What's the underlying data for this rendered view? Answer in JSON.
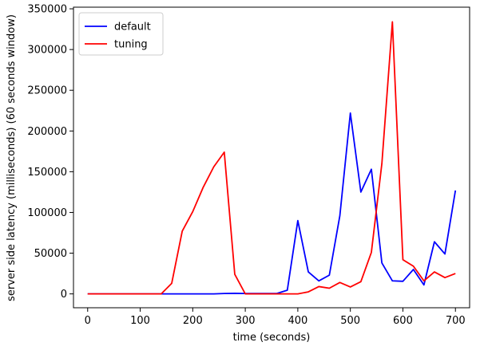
{
  "chart_data": {
    "type": "line",
    "title": "",
    "xlabel": "time (seconds)",
    "ylabel": "server side latency (milliseconds) (60 seconds window)",
    "xlim": [
      -27,
      727
    ],
    "ylim": [
      -17000,
      352000
    ],
    "xticks": [
      0,
      100,
      200,
      300,
      400,
      500,
      600,
      700
    ],
    "yticks": [
      0,
      50000,
      100000,
      150000,
      200000,
      250000,
      300000,
      350000
    ],
    "grid": false,
    "legend_position": "upper-left",
    "series": [
      {
        "name": "default",
        "color": "#0000ff",
        "x": [
          0,
          20,
          40,
          60,
          80,
          100,
          120,
          140,
          160,
          180,
          200,
          220,
          240,
          260,
          280,
          300,
          320,
          340,
          360,
          380,
          400,
          420,
          440,
          460,
          480,
          500,
          520,
          540,
          560,
          580,
          600,
          620,
          640,
          660,
          680,
          700
        ],
        "y": [
          0,
          0,
          0,
          0,
          0,
          0,
          0,
          0,
          0,
          0,
          0,
          0,
          0,
          500,
          700,
          500,
          500,
          500,
          500,
          4500,
          90000,
          27000,
          16000,
          23000,
          96000,
          222000,
          125000,
          153000,
          38000,
          16000,
          15500,
          30000,
          11000,
          64000,
          49000,
          127000
        ]
      },
      {
        "name": "tuning",
        "color": "#ff0000",
        "x": [
          0,
          20,
          40,
          60,
          80,
          100,
          120,
          140,
          160,
          180,
          200,
          220,
          240,
          260,
          280,
          300,
          320,
          340,
          360,
          380,
          400,
          420,
          440,
          460,
          480,
          500,
          520,
          540,
          560,
          580,
          600,
          620,
          640,
          660,
          680,
          700
        ],
        "y": [
          0,
          0,
          0,
          0,
          0,
          0,
          0,
          0,
          13000,
          77000,
          101000,
          131000,
          156000,
          174000,
          24000,
          0,
          0,
          0,
          0,
          0,
          0,
          2500,
          9000,
          7000,
          14000,
          8500,
          15000,
          51000,
          160000,
          334000,
          42000,
          34000,
          16000,
          27000,
          20000,
          25000
        ]
      }
    ]
  }
}
